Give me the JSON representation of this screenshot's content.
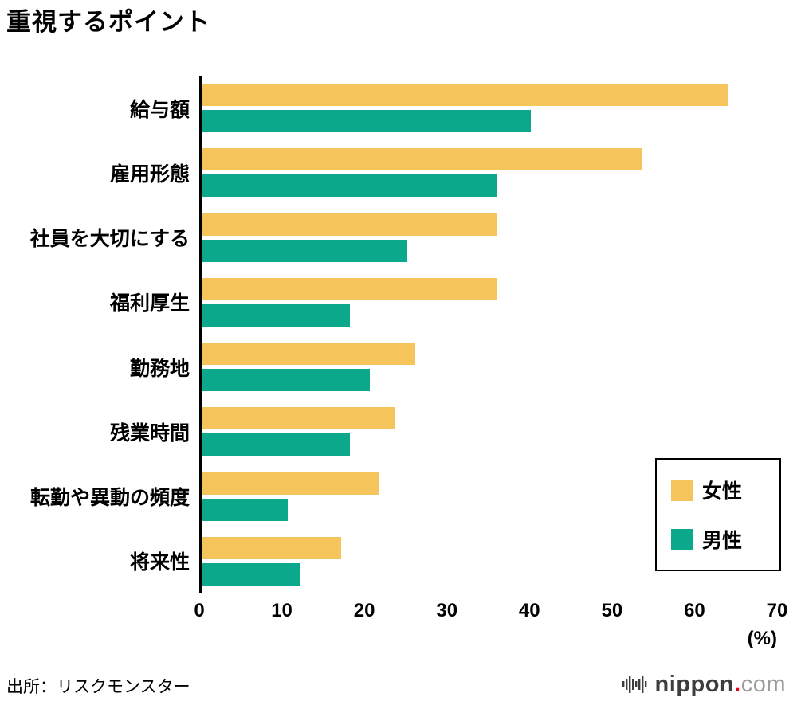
{
  "title": "重視するポイント",
  "source": "出所：リスクモンスター",
  "unit_label": "(%)",
  "logo": {
    "nippon": "nippon",
    "dot": ".",
    "com": "com"
  },
  "legend": [
    {
      "label": "女性",
      "color": "#F5C55C"
    },
    {
      "label": "男性",
      "color": "#0BA88B"
    }
  ],
  "chart_data": {
    "type": "bar",
    "orientation": "horizontal",
    "title": "重視するポイント",
    "xlabel": "(%)",
    "ylabel": "",
    "xlim": [
      0,
      70
    ],
    "xticks": [
      0,
      10,
      20,
      30,
      40,
      50,
      60,
      70
    ],
    "grid": false,
    "legend_position": "right-inside",
    "categories": [
      "給与額",
      "雇用形態",
      "社員を大切にする",
      "福利厚生",
      "勤務地",
      "残業時間",
      "転勤や異動の頻度",
      "将来性"
    ],
    "series": [
      {
        "name": "女性",
        "color": "#F5C55C",
        "values": [
          64,
          53.5,
          36,
          36,
          26,
          23.5,
          21.5,
          17
        ]
      },
      {
        "name": "男性",
        "color": "#0BA88B",
        "values": [
          40,
          36,
          25,
          18,
          20.5,
          18,
          10.5,
          12
        ]
      }
    ]
  }
}
